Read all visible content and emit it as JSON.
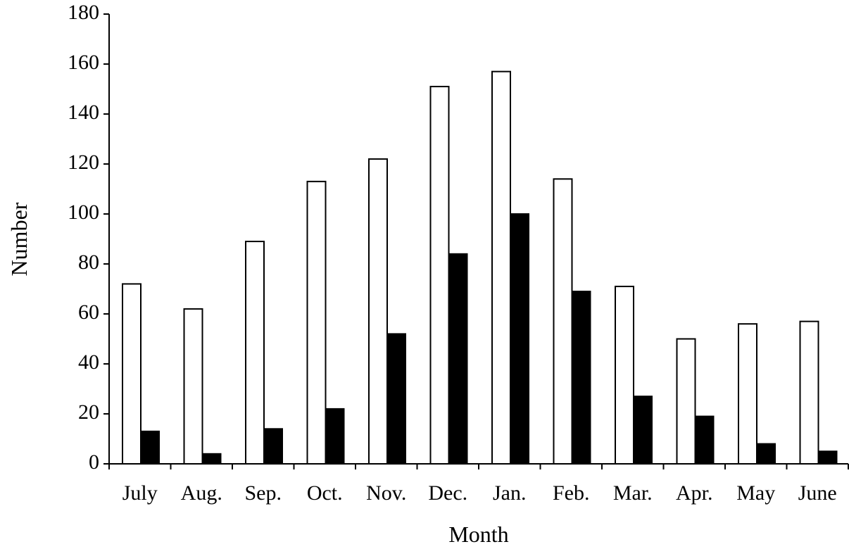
{
  "chart_data": {
    "type": "bar",
    "x_label": "Month",
    "y_label": "Number",
    "categories": [
      "July",
      "Aug.",
      "Sep.",
      "Oct.",
      "Nov.",
      "Dec.",
      "Jan.",
      "Feb.",
      "Mar.",
      "Apr.",
      "May",
      "June"
    ],
    "series": [
      {
        "color": "#ffffff",
        "values": [
          72,
          62,
          89,
          113,
          122,
          151,
          157,
          114,
          71,
          50,
          56,
          57
        ]
      },
      {
        "color": "#000000",
        "values": [
          13,
          4,
          14,
          22,
          52,
          84,
          100,
          69,
          27,
          19,
          8,
          5
        ]
      }
    ],
    "ylim": [
      0,
      180
    ],
    "yticks": [
      0,
      20,
      40,
      60,
      80,
      100,
      120,
      140,
      160,
      180
    ],
    "grid": false
  }
}
